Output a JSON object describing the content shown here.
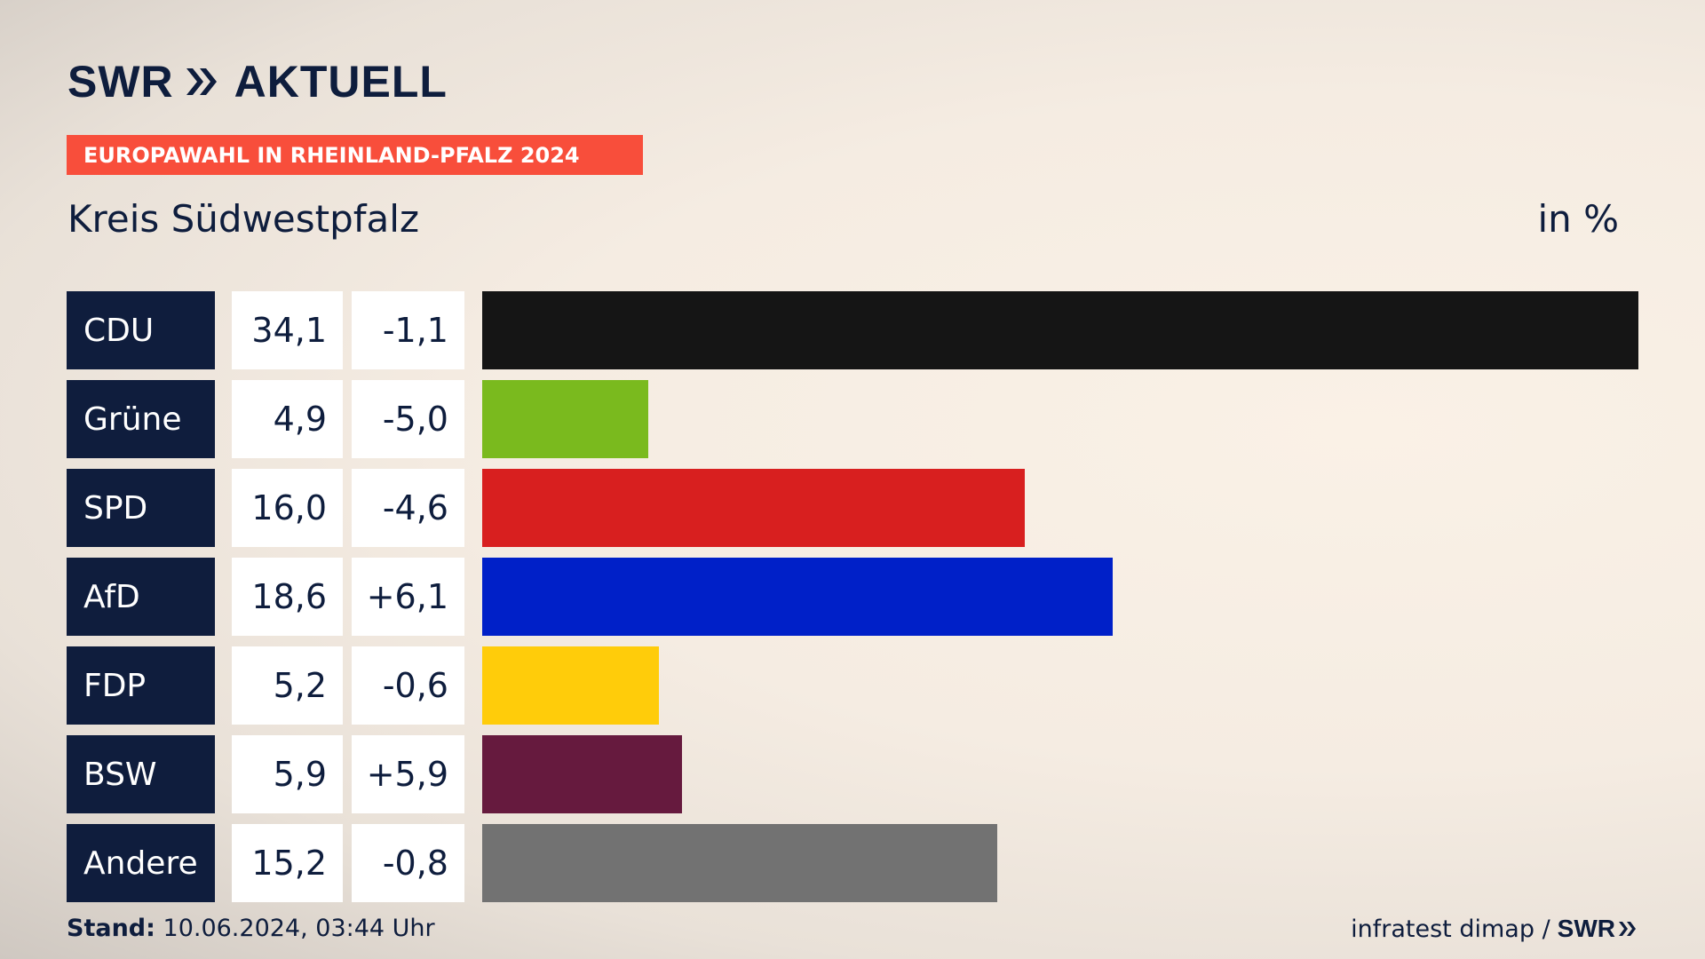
{
  "logo": {
    "brand": "SWR",
    "product": "AKTUELL"
  },
  "banner": "EUROPAWAHL IN RHEINLAND-PFALZ 2024",
  "subtitle": "Kreis Südwestpfalz",
  "unit": "in %",
  "chart_data": {
    "type": "bar",
    "orientation": "horizontal",
    "title": "EUROPAWAHL IN RHEINLAND-PFALZ 2024",
    "subtitle": "Kreis Südwestpfalz",
    "unit": "in %",
    "categories": [
      "CDU",
      "Grüne",
      "SPD",
      "AfD",
      "FDP",
      "BSW",
      "Andere"
    ],
    "values": [
      34.1,
      4.9,
      16.0,
      18.6,
      5.2,
      5.9,
      15.2
    ],
    "value_labels": [
      "34,1",
      "4,9",
      "16,0",
      "18,6",
      "5,2",
      "5,9",
      "15,2"
    ],
    "change_labels": [
      "-1,1",
      "-5,0",
      "-4,6",
      "+6,1",
      "-0,6",
      "+5,9",
      "-0,8"
    ],
    "changes": [
      -1.1,
      -5.0,
      -4.6,
      6.1,
      -0.6,
      5.9,
      -0.8
    ],
    "colors": [
      "#151515",
      "#7aba1e",
      "#d81f1f",
      "#0020c8",
      "#ffcc0a",
      "#661a3e",
      "#727272"
    ],
    "xlim": [
      0,
      34.1
    ]
  },
  "footer": {
    "stand_label": "Stand:",
    "stand_value": "10.06.2024, 03:44 Uhr",
    "source": "infratest dimap /",
    "source_brand": "SWR"
  }
}
